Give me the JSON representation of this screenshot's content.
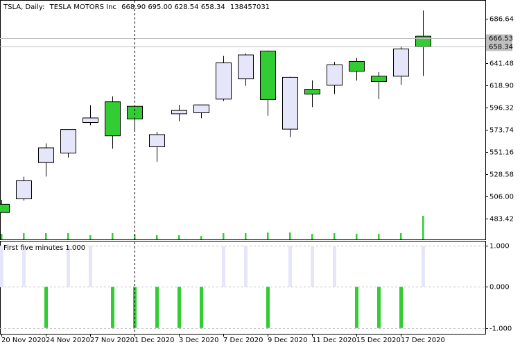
{
  "chart_data": [
    {
      "type": "candlestick",
      "title": "TSLA, Daily:",
      "subtitle": "TESLA MOTORS Inc",
      "header_values": [
        {
          "value": 668.9,
          "label": "668.90"
        },
        {
          "value": 695,
          "label": "695.00"
        },
        {
          "value": 628.54,
          "label": "628.54"
        },
        {
          "value": 658.34,
          "label": "658.34"
        }
      ],
      "categories": [
        "20 Nov 2020",
        null,
        "24 Nov 2020",
        null,
        "27 Nov 2020",
        null,
        "1 Dec 2020",
        null,
        "3 Dec 2020",
        null,
        "7 Dec 2020",
        null,
        "9 Dec 2020",
        null,
        "11 Dec 2020",
        null,
        "15 Dec 2020",
        null,
        "17 Dec 2020",
        null
      ],
      "open": [
        497.99,
        503.5,
        540.4,
        550.06,
        581.16,
        602.21,
        597.59,
        556.44,
        590.02,
        591.01,
        604.92,
        625.51,
        653.69,
        574.37,
        615.01,
        619.0,
        643.28,
        628.23,
        628.19,
        668.9
      ],
      "high": [
        502.5,
        526.0,
        559.99,
        574.0,
        598.78,
        607.8,
        597.85,
        571.54,
        598.97,
        599.04,
        648.79,
        651.28,
        654.32,
        627.75,
        624.0,
        642.75,
        646.9,
        632.5,
        658.82,
        695
      ],
      "low": [
        489.06,
        501.8,
        526.2,
        545.37,
        578.45,
        554.51,
        572.05,
        541.21,
        582.43,
        585.5,
        603.05,
        618.5,
        588.0,
        566.34,
        596.8,
        610.2,
        623.8,
        605.0,
        619.5,
        628.54
      ],
      "close": [
        489.61,
        521.85,
        555.38,
        574.0,
        585.76,
        567.6,
        584.76,
        568.82,
        593.38,
        599.04,
        641.76,
        649.88,
        604.48,
        627.07,
        609.99,
        639.83,
        633.25,
        622.77,
        655.9,
        658.34
      ],
      "volume": [
        32600000,
        36600000,
        36600000,
        36600000,
        24400000,
        36600000,
        28500000,
        24400000,
        24400000,
        20400000,
        36600000,
        36600000,
        40700000,
        40700000,
        32600000,
        36600000,
        32600000,
        32600000,
        36600000,
        138457031
      ],
      "up_color": "#e6e6fa",
      "down_color": "#32cd32",
      "volume_color": "#32cd32",
      "ylim": [
        462.25,
        704.28
      ],
      "yticks": [
        686.64,
        641.48,
        {
          "value": 618.9,
          "label": "618.90"
        },
        596.32,
        573.74,
        551.16,
        528.58,
        {
          "value": 506,
          "label": "506.00"
        },
        483.42
      ],
      "price_lines": [
        {
          "value": 666.53,
          "label": "666.53"
        },
        {
          "value": 658.34,
          "label": "658.34"
        }
      ]
    },
    {
      "type": "bar",
      "title": "First five minutes 1.000",
      "values": [
        1,
        1,
        -1,
        1,
        1,
        -1,
        -1,
        -1,
        -1,
        -1,
        1,
        1,
        -1,
        1,
        1,
        1,
        -1,
        -1,
        -1,
        1
      ],
      "up_color": "#e6e6fa",
      "down_color": "#32cd32",
      "ylim": [
        -1.14,
        1.1
      ],
      "yticks": [
        {
          "value": 1,
          "label": "1.000"
        },
        {
          "value": 0,
          "label": "0.000"
        },
        {
          "value": -1,
          "label": "-1.000"
        }
      ],
      "grid": true
    }
  ]
}
